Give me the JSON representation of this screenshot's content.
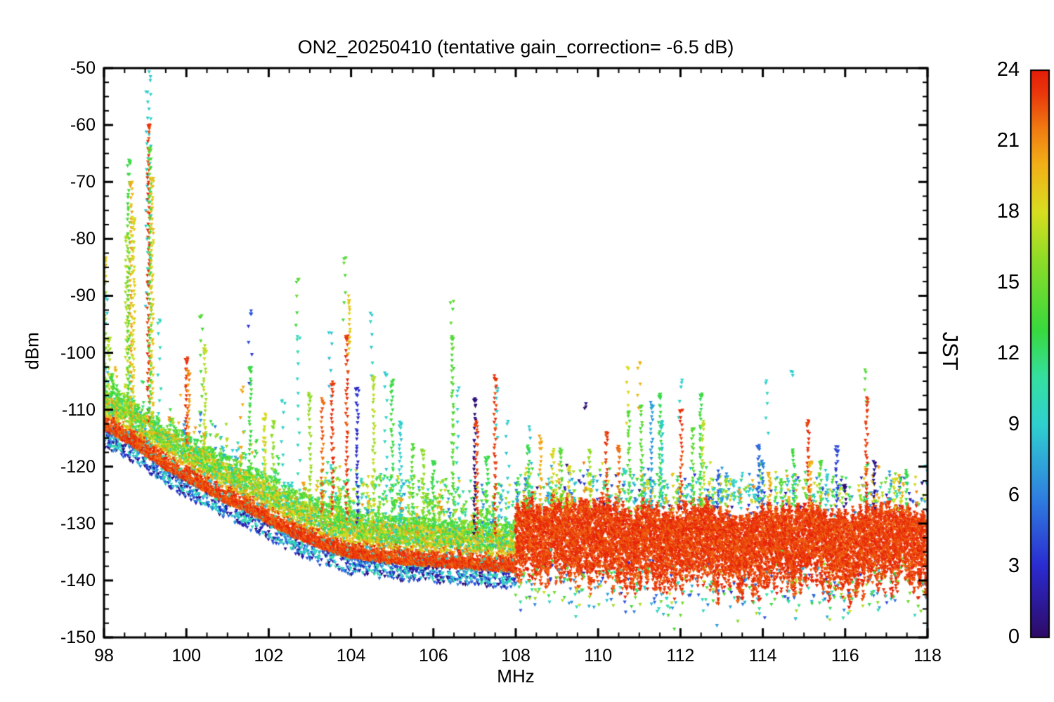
{
  "chart_data": {
    "type": "scatter",
    "marker": "triangle-down",
    "title": "ON2_20250410 (tentative gain_correction= -6.5 dB)",
    "xlabel": "MHz",
    "ylabel": "dBm",
    "xlim": [
      98,
      118
    ],
    "ylim": [
      -150,
      -50
    ],
    "xticks": [
      98,
      100,
      102,
      104,
      106,
      108,
      110,
      112,
      114,
      116,
      118
    ],
    "yticks": [
      -150,
      -140,
      -130,
      -120,
      -110,
      -100,
      -90,
      -80,
      -70,
      -60,
      -50
    ],
    "x_minor_step": 0.5,
    "y_minor_step": 2.5,
    "grid": false,
    "colorbar": {
      "label": "JST",
      "min": 0,
      "max": 24,
      "ticks": [
        0,
        3,
        6,
        9,
        12,
        15,
        18,
        21,
        24
      ],
      "colormap_stops": [
        [
          0,
          "#2e0a66"
        ],
        [
          3,
          "#2b2bd0"
        ],
        [
          6,
          "#2f82e0"
        ],
        [
          9,
          "#2fd0cf"
        ],
        [
          11,
          "#35e0a0"
        ],
        [
          13,
          "#38d93e"
        ],
        [
          16,
          "#8fdc28"
        ],
        [
          18,
          "#d8de20"
        ],
        [
          20,
          "#f2b018"
        ],
        [
          21.5,
          "#f07c12"
        ],
        [
          23,
          "#ea380c"
        ],
        [
          24,
          "#e51d08"
        ]
      ]
    },
    "noise_floor": [
      [
        98,
        -112.5
      ],
      [
        98.5,
        -114.5
      ],
      [
        99,
        -117
      ],
      [
        99.5,
        -119.5
      ],
      [
        100,
        -121.5
      ],
      [
        100.5,
        -123.5
      ],
      [
        101,
        -125.5
      ],
      [
        101.5,
        -127
      ],
      [
        102,
        -129
      ],
      [
        102.5,
        -131
      ],
      [
        103,
        -132.5
      ],
      [
        103.5,
        -134
      ],
      [
        104,
        -135
      ],
      [
        105,
        -136
      ],
      [
        106,
        -136.5
      ],
      [
        107,
        -137
      ],
      [
        108,
        -137.5
      ]
    ],
    "dense_band_108_118": {
      "top": -127.5,
      "bottom": -143,
      "outliers_to": -147,
      "jst": 23
    },
    "spikes": [
      {
        "mhz": 98.02,
        "peak": -83,
        "jst": 16,
        "cap": 19
      },
      {
        "mhz": 98.07,
        "peak": -90,
        "jst": 9,
        "sparse": true
      },
      {
        "mhz": 98.12,
        "peak": -97,
        "jst": 17
      },
      {
        "mhz": 98.2,
        "peak": -104,
        "jst": 13
      },
      {
        "mhz": 98.55,
        "peak": -79,
        "jst": 17
      },
      {
        "mhz": 98.6,
        "peak": -66,
        "jst": 14,
        "cap": 13
      },
      {
        "mhz": 98.66,
        "peak": -70,
        "jst": 20
      },
      {
        "mhz": 98.72,
        "peak": -76,
        "jst": 18
      },
      {
        "mhz": 99.05,
        "peak": -54,
        "base": -92,
        "jst": 9,
        "sparse": true
      },
      {
        "mhz": 99.1,
        "peak": -50.5,
        "base": -88,
        "jst": 9,
        "sparse": true
      },
      {
        "mhz": 99.08,
        "peak": -60,
        "jst": 23
      },
      {
        "mhz": 99.12,
        "peak": -64,
        "jst": 14
      },
      {
        "mhz": 99.17,
        "peak": -69,
        "jst": 19
      },
      {
        "mhz": 99.35,
        "peak": -94,
        "jst": 10,
        "sparse": true
      },
      {
        "mhz": 100.0,
        "peak": -101,
        "jst": 23
      },
      {
        "mhz": 100.05,
        "peak": -103,
        "jst": 21
      },
      {
        "mhz": 100.35,
        "peak": -93,
        "jst": 14,
        "sparse": true
      },
      {
        "mhz": 100.45,
        "peak": -99,
        "jst": 17
      },
      {
        "mhz": 101.35,
        "peak": -106,
        "jst": 20,
        "sparse": true
      },
      {
        "mhz": 101.55,
        "peak": -92.5,
        "base": -105,
        "jst": 4,
        "sparse": true
      },
      {
        "mhz": 101.55,
        "peak": -102,
        "jst": 13
      },
      {
        "mhz": 101.9,
        "peak": -111,
        "jst": 18
      },
      {
        "mhz": 102.1,
        "peak": -112,
        "jst": 16
      },
      {
        "mhz": 102.35,
        "peak": -108,
        "jst": 9,
        "sparse": true
      },
      {
        "mhz": 102.7,
        "peak": -86.5,
        "base": -95,
        "jst": 14,
        "sparse": true
      },
      {
        "mhz": 102.72,
        "peak": -97,
        "jst": 10,
        "sparse": true
      },
      {
        "mhz": 103.0,
        "peak": -107,
        "jst": 16
      },
      {
        "mhz": 103.3,
        "peak": -108,
        "jst": 22
      },
      {
        "mhz": 103.5,
        "peak": -96,
        "base": -108,
        "jst": 9,
        "sparse": true
      },
      {
        "mhz": 103.55,
        "peak": -105,
        "jst": 23
      },
      {
        "mhz": 103.85,
        "peak": -83,
        "base": -94,
        "jst": 14,
        "sparse": true
      },
      {
        "mhz": 103.9,
        "peak": -97,
        "jst": 23
      },
      {
        "mhz": 103.95,
        "peak": -90,
        "base": -100,
        "jst": 19
      },
      {
        "mhz": 104.15,
        "peak": -106,
        "jst": 3
      },
      {
        "mhz": 104.5,
        "peak": -92.5,
        "base": -104,
        "jst": 9,
        "sparse": true
      },
      {
        "mhz": 104.55,
        "peak": -104,
        "jst": 17
      },
      {
        "mhz": 104.85,
        "peak": -103,
        "jst": 9,
        "sparse": true
      },
      {
        "mhz": 105.0,
        "peak": -105,
        "jst": 13
      },
      {
        "mhz": 105.2,
        "peak": -112,
        "jst": 9
      },
      {
        "mhz": 105.5,
        "peak": -116,
        "jst": 14
      },
      {
        "mhz": 105.75,
        "peak": -117,
        "jst": 16
      },
      {
        "mhz": 106.0,
        "peak": -119,
        "jst": 13
      },
      {
        "mhz": 106.45,
        "peak": -90.5,
        "base": -97,
        "jst": 14,
        "sparse": true
      },
      {
        "mhz": 106.47,
        "peak": -97,
        "jst": 14
      },
      {
        "mhz": 106.6,
        "peak": -106,
        "jst": 9,
        "sparse": true
      },
      {
        "mhz": 107.0,
        "peak": -108,
        "jst": 0.5
      },
      {
        "mhz": 107.05,
        "peak": -112,
        "jst": 23
      },
      {
        "mhz": 107.3,
        "peak": -118,
        "jst": 13
      },
      {
        "mhz": 107.5,
        "peak": -104,
        "jst": 23
      },
      {
        "mhz": 107.55,
        "peak": -106,
        "base": -115,
        "jst": 9,
        "sparse": true
      },
      {
        "mhz": 107.8,
        "peak": -112,
        "jst": 9,
        "sparse": true
      },
      {
        "mhz": 108.3,
        "peak": -116,
        "jst": 13
      },
      {
        "mhz": 108.35,
        "peak": -113,
        "jst": 9,
        "sparse": true
      },
      {
        "mhz": 108.6,
        "peak": -115,
        "jst": 20
      },
      {
        "mhz": 108.9,
        "peak": -117,
        "jst": 18
      },
      {
        "mhz": 109.1,
        "peak": -117,
        "jst": 14
      },
      {
        "mhz": 109.3,
        "peak": -120,
        "jst": 18
      },
      {
        "mhz": 109.7,
        "peak": -108.5,
        "jst": 0.5,
        "single": true
      },
      {
        "mhz": 109.8,
        "peak": -117,
        "jst": 16
      },
      {
        "mhz": 110.2,
        "peak": -114,
        "jst": 23
      },
      {
        "mhz": 110.5,
        "peak": -116.5,
        "jst": 22
      },
      {
        "mhz": 110.7,
        "peak": -102.5,
        "base": -112,
        "jst": 18,
        "sparse": true
      },
      {
        "mhz": 110.75,
        "peak": -110,
        "jst": 14
      },
      {
        "mhz": 111.0,
        "peak": -101,
        "base": -110,
        "jst": 20,
        "sparse": true
      },
      {
        "mhz": 111.05,
        "peak": -109,
        "jst": 14
      },
      {
        "mhz": 111.3,
        "peak": -109,
        "jst": 7
      },
      {
        "mhz": 111.5,
        "peak": -107,
        "jst": 13
      },
      {
        "mhz": 111.55,
        "peak": -112,
        "jst": 9
      },
      {
        "mhz": 112.0,
        "peak": -104.5,
        "base": -111,
        "jst": 9,
        "sparse": true
      },
      {
        "mhz": 112.02,
        "peak": -110,
        "jst": 23
      },
      {
        "mhz": 112.3,
        "peak": -113,
        "jst": 14
      },
      {
        "mhz": 112.5,
        "peak": -107,
        "jst": 13
      },
      {
        "mhz": 112.55,
        "peak": -112,
        "jst": 17
      },
      {
        "mhz": 112.9,
        "peak": -121,
        "jst": 5
      },
      {
        "mhz": 113.1,
        "peak": -122,
        "jst": 16
      },
      {
        "mhz": 113.5,
        "peak": -121,
        "jst": 9,
        "sparse": true
      },
      {
        "mhz": 113.9,
        "peak": -116,
        "jst": 5
      },
      {
        "mhz": 114.0,
        "peak": -119,
        "jst": 6
      },
      {
        "mhz": 114.1,
        "peak": -104.5,
        "base": -114,
        "jst": 9,
        "sparse": true
      },
      {
        "mhz": 114.15,
        "peak": -121,
        "jst": 20
      },
      {
        "mhz": 114.45,
        "peak": -122,
        "jst": 14
      },
      {
        "mhz": 114.7,
        "peak": -103,
        "jst": 9,
        "single": true
      },
      {
        "mhz": 114.75,
        "peak": -117,
        "jst": 13
      },
      {
        "mhz": 115.1,
        "peak": -112,
        "jst": 23
      },
      {
        "mhz": 115.15,
        "peak": -119,
        "jst": 20
      },
      {
        "mhz": 115.4,
        "peak": -119,
        "jst": 14
      },
      {
        "mhz": 115.55,
        "peak": -121,
        "jst": 9
      },
      {
        "mhz": 115.8,
        "peak": -116.5,
        "jst": 4
      },
      {
        "mhz": 116.0,
        "peak": -123,
        "jst": 0.5
      },
      {
        "mhz": 116.5,
        "peak": -102.5,
        "base": -109,
        "jst": 14,
        "sparse": true
      },
      {
        "mhz": 116.52,
        "peak": -108,
        "jst": 23
      },
      {
        "mhz": 116.7,
        "peak": -119,
        "jst": 1
      },
      {
        "mhz": 117.2,
        "peak": -122,
        "jst": 18
      },
      {
        "mhz": 117.5,
        "peak": -121,
        "jst": 13
      }
    ]
  }
}
